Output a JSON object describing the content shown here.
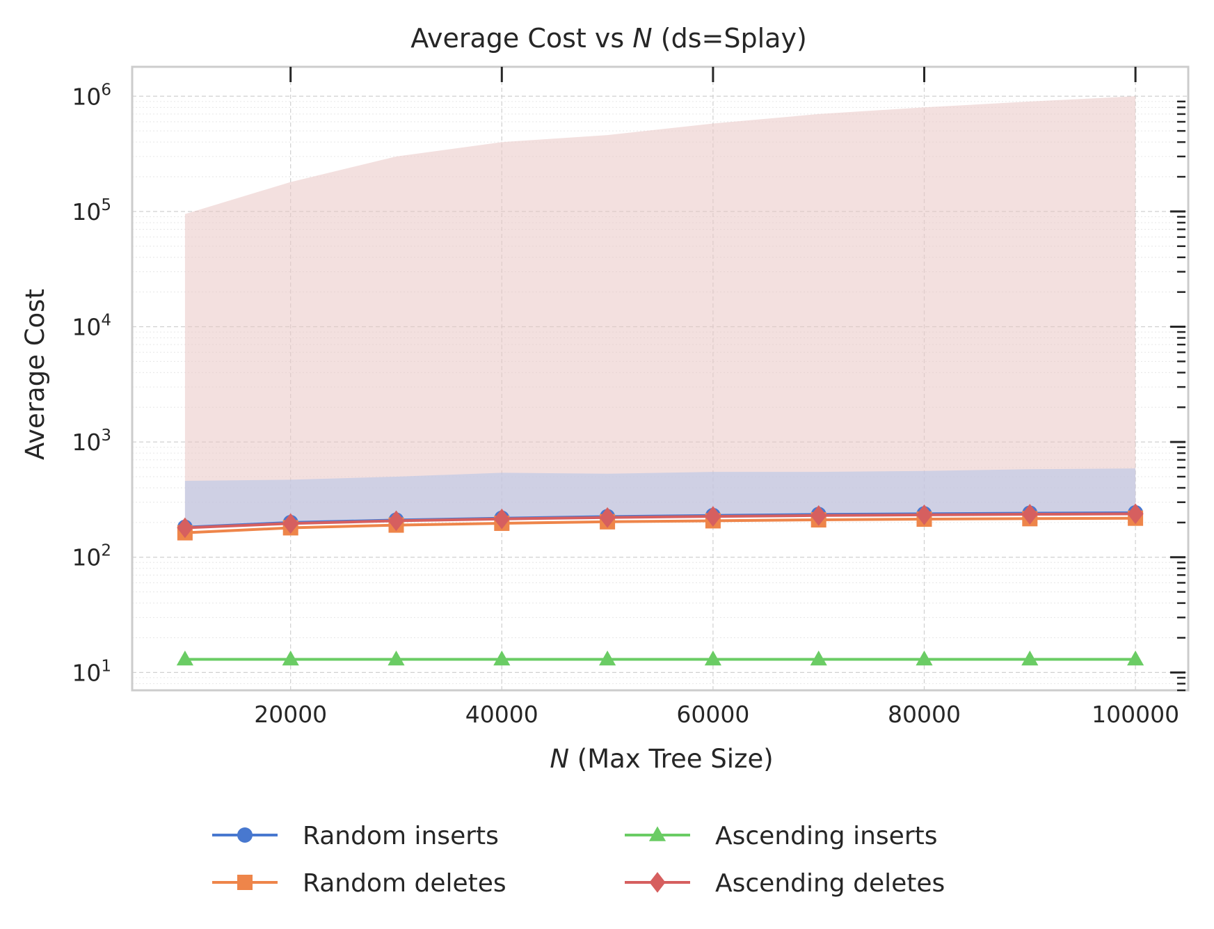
{
  "chart_data": {
    "type": "line",
    "title": "Average Cost vs ",
    "title_italic": "N",
    "title_suffix": " (ds=Splay)",
    "xlabel_italic": "N",
    "xlabel": " (Max Tree Size)",
    "ylabel": "Average Cost",
    "yscale": "log",
    "xlim": [
      5000,
      105000
    ],
    "ylim": [
      7,
      1800000
    ],
    "grid": true,
    "legend_position": "bottom-center",
    "x": [
      10000,
      20000,
      30000,
      40000,
      50000,
      60000,
      70000,
      80000,
      90000,
      100000
    ],
    "x_tick_labels": [
      "20000",
      "40000",
      "60000",
      "80000",
      "100000"
    ],
    "x_tick_values": [
      20000,
      40000,
      60000,
      80000,
      100000
    ],
    "y_tick_labels": [
      {
        "base": "10",
        "exp": "1",
        "value": 10
      },
      {
        "base": "10",
        "exp": "2",
        "value": 100
      },
      {
        "base": "10",
        "exp": "3",
        "value": 1000
      },
      {
        "base": "10",
        "exp": "4",
        "value": 10000
      },
      {
        "base": "10",
        "exp": "5",
        "value": 100000
      },
      {
        "base": "10",
        "exp": "6",
        "value": 1000000
      }
    ],
    "series": [
      {
        "name": "Random inserts",
        "color": "#4878cf",
        "marker": "circle",
        "values": [
          182,
          200,
          210,
          218,
          225,
          230,
          235,
          238,
          241,
          243
        ],
        "band_upper": [
          460,
          470,
          500,
          540,
          530,
          550,
          550,
          560,
          580,
          590
        ],
        "band_lower": [
          182,
          200,
          210,
          218,
          225,
          230,
          235,
          238,
          241,
          243
        ],
        "band_color": "#b7c4e8"
      },
      {
        "name": "Random deletes",
        "color": "#ee854a",
        "marker": "square",
        "values": [
          163,
          180,
          190,
          197,
          203,
          207,
          211,
          214,
          216,
          218
        ],
        "band_upper": null,
        "band_lower": null,
        "band_color": null
      },
      {
        "name": "Ascending inserts",
        "color": "#6acc64",
        "marker": "triangle",
        "values": [
          13,
          13,
          13,
          13,
          13,
          13,
          13,
          13,
          13,
          13
        ],
        "band_upper": null,
        "band_lower": null,
        "band_color": null
      },
      {
        "name": "Ascending deletes",
        "color": "#d65f5f",
        "marker": "diamond",
        "values": [
          180,
          196,
          207,
          215,
          221,
          226,
          230,
          233,
          236,
          238
        ],
        "band_upper": [
          95000,
          180000,
          300000,
          400000,
          460000,
          580000,
          700000,
          800000,
          900000,
          1000000
        ],
        "band_lower": [
          180,
          196,
          207,
          215,
          221,
          226,
          230,
          233,
          236,
          238
        ],
        "band_color": "#e9c6c4"
      }
    ]
  }
}
